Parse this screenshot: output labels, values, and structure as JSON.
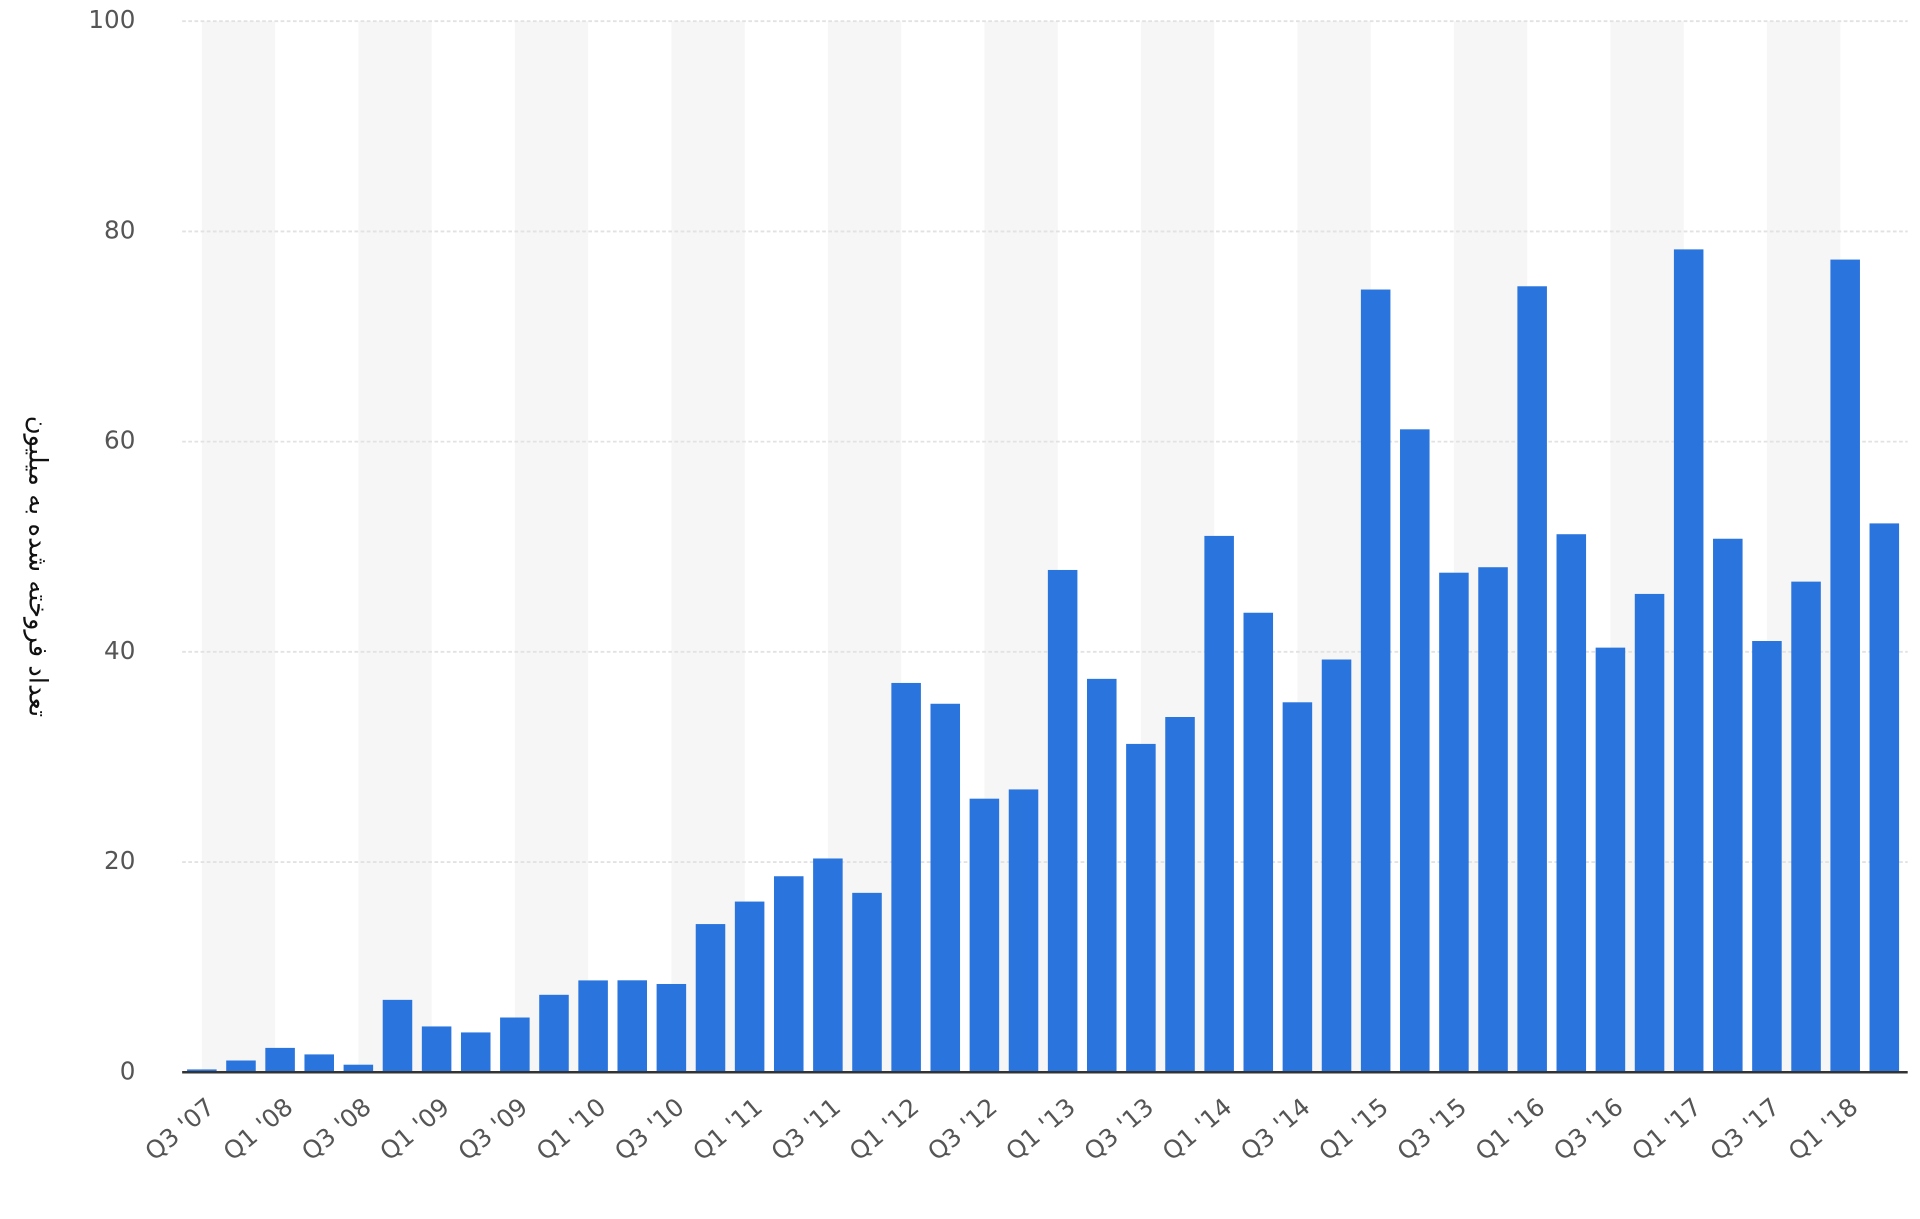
{
  "chart_data": {
    "type": "bar",
    "y_label": "تعداد فروخته شده به میلیون",
    "categories": [
      "Q3 '07",
      null,
      "Q1 '08",
      null,
      "Q3 '08",
      null,
      "Q1 '09",
      null,
      "Q3 '09",
      null,
      "Q1 '10",
      null,
      "Q3 '10",
      null,
      "Q1 '11",
      null,
      "Q3 '11",
      null,
      "Q1 '12",
      null,
      "Q3 '12",
      null,
      "Q1 '13",
      null,
      "Q3 '13",
      null,
      "Q1 '14",
      null,
      "Q3 '14",
      null,
      "Q1 '15",
      null,
      "Q3 '15",
      null,
      "Q1 '16",
      null,
      "Q3 '16",
      null,
      "Q1 '17",
      null,
      "Q3 '17",
      null,
      "Q1 '18",
      null
    ],
    "values": [
      0.27,
      1.12,
      2.32,
      1.7,
      0.72,
      6.89,
      4.36,
      3.79,
      5.21,
      7.37,
      8.74,
      8.75,
      8.4,
      14.1,
      16.24,
      18.65,
      20.34,
      17.07,
      37.04,
      35.06,
      26.03,
      26.91,
      47.79,
      37.43,
      31.24,
      33.8,
      51.03,
      43.72,
      35.2,
      39.27,
      74.47,
      61.17,
      47.53,
      48.05,
      74.78,
      51.19,
      40.4,
      45.51,
      78.29,
      50.76,
      41.03,
      46.68,
      77.32,
      52.22
    ],
    "color": "#2a74dd",
    "ylim": [
      0,
      100
    ],
    "yticks": [
      0,
      20,
      40,
      60,
      80,
      100
    ],
    "grid": true
  }
}
